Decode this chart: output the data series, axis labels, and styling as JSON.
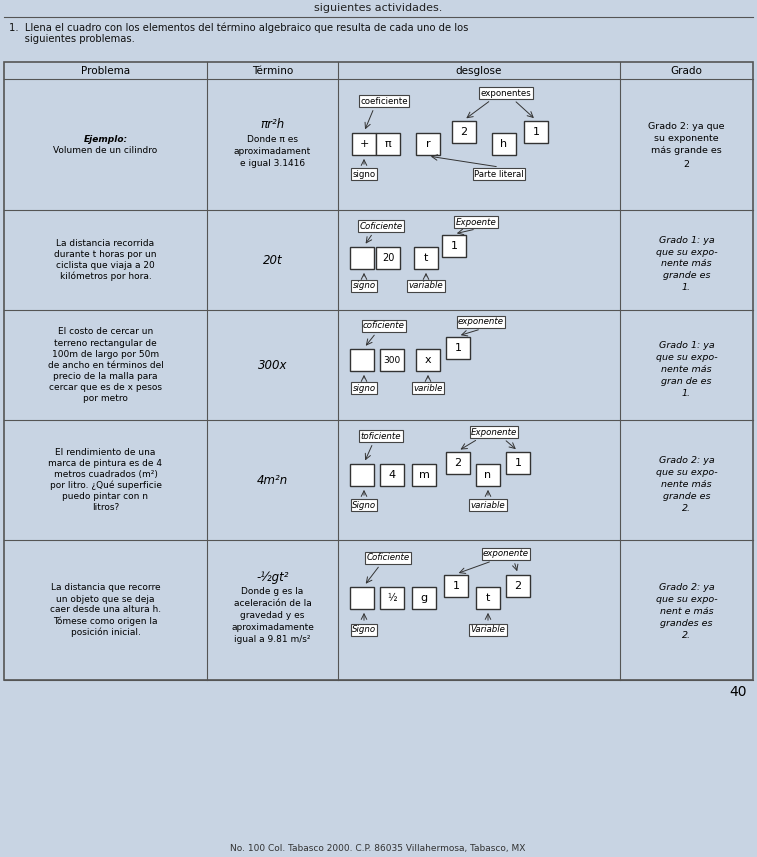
{
  "bg_color": "#c8d4e3",
  "title_line1": "1.  Llena el cuadro con los elementos del término algebraico que resulta de cada uno de los",
  "title_line2": "     siguientes problemas.",
  "header": [
    "Problema",
    "Término",
    "desglose",
    "Grado"
  ],
  "page_number": "40",
  "footer": "No. 100 Col. Tabasco 2000. C.P. 86035 Villahermosa, Tabasco, MX",
  "top_text": "siguientes actividades.",
  "col_bounds": [
    4,
    207,
    338,
    620,
    753
  ],
  "row_bounds": [
    62,
    79,
    210,
    310,
    420,
    540,
    680
  ],
  "rows": [
    {
      "problema_lines": [
        "Ejemplo:",
        "Volumen de un cilindro"
      ],
      "problema_styles": [
        "bold_italic",
        "normal"
      ],
      "termino_lines": [
        "πr²h",
        "Donde π es",
        "aproximadament",
        "e igual 3.1416"
      ],
      "termino_offsets": [
        -20,
        -5,
        7,
        19
      ],
      "grado_lines": [
        "Grado 2: ya que",
        "su exponente",
        "más grande es",
        "2"
      ],
      "grado_offsets": [
        -18,
        -6,
        6,
        20
      ]
    },
    {
      "problema_lines": [
        "La distancia recorrida",
        "durante t horas por un",
        "ciclista que viaja a 20",
        "kilómetros por hora."
      ],
      "problema_styles": [
        "normal",
        "normal",
        "normal",
        "normal"
      ],
      "termino_lines": [
        "20t"
      ],
      "termino_offsets": [
        0
      ],
      "grado_lines": [
        "Grado 1: ya",
        "que su expo-",
        "nente más",
        "grande es",
        "1."
      ],
      "grado_offsets": [
        -20,
        -8,
        4,
        16,
        28
      ]
    },
    {
      "problema_lines": [
        "El costo de cercar un",
        "terreno rectangular de",
        "100m de largo por 50m",
        "de ancho en términos del",
        "precio de la malla para",
        "cercar que es de x pesos",
        "por metro"
      ],
      "problema_styles": [
        "normal",
        "normal",
        "normal",
        "normal",
        "normal",
        "normal",
        "normal"
      ],
      "termino_lines": [
        "300x"
      ],
      "termino_offsets": [
        0
      ],
      "grado_lines": [
        "Grado 1: ya",
        "que su expo-",
        "nente más",
        "gran de es",
        "1."
      ],
      "grado_offsets": [
        -20,
        -8,
        4,
        16,
        28
      ]
    },
    {
      "problema_lines": [
        "El rendimiento de una",
        "marca de pintura es de 4",
        "metros cuadrados (m²)",
        "por litro. ¿Qué superficie",
        "puedo pintar con n",
        "litros?"
      ],
      "problema_styles": [
        "normal",
        "normal",
        "normal",
        "normal",
        "normal",
        "normal"
      ],
      "termino_lines": [
        "4m²n"
      ],
      "termino_offsets": [
        0
      ],
      "grado_lines": [
        "Grado 2: ya",
        "que su expo-",
        "nente más",
        "grande es",
        "2."
      ],
      "grado_offsets": [
        -20,
        -8,
        4,
        16,
        28
      ]
    },
    {
      "problema_lines": [
        "La distancia que recorre",
        "un objeto que se deja",
        "caer desde una altura h.",
        "Tómese como origen la",
        "posición inicial."
      ],
      "problema_styles": [
        "normal",
        "normal",
        "normal",
        "normal",
        "normal"
      ],
      "termino_lines": [
        "-½gt²",
        "Donde g es la",
        "aceleración de la",
        "gravedad y es",
        "aproximadamente",
        "igual a 9.81 m/s²"
      ],
      "termino_offsets": [
        -33,
        -18,
        -6,
        6,
        18,
        30
      ],
      "grado_lines": [
        "Grado 2: ya",
        "que su expo-",
        "nent e más",
        "grandes es",
        "2."
      ],
      "grado_offsets": [
        -22,
        -10,
        2,
        14,
        26
      ]
    }
  ]
}
